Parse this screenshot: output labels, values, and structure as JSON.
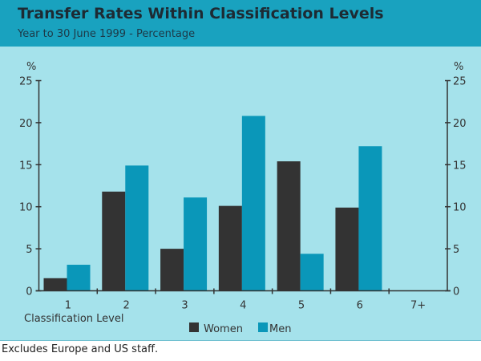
{
  "chart_data": {
    "type": "bar",
    "title": "Transfer Rates Within Classification Levels",
    "subtitle": "Year to 30 June 1999 - Percentage",
    "xlabel": "Classification Level",
    "ylabel_left": "%",
    "ylabel_right": "%",
    "ylim": [
      0,
      25
    ],
    "yticks": [
      0,
      5,
      10,
      15,
      20,
      25
    ],
    "categories": [
      "1",
      "2",
      "3",
      "4",
      "5",
      "6",
      "7+"
    ],
    "series": [
      {
        "name": "Women",
        "color": "#333333",
        "values": [
          1.5,
          11.8,
          5.0,
          10.1,
          15.4,
          9.9,
          null
        ]
      },
      {
        "name": "Men",
        "color": "#0a97b9",
        "values": [
          3.1,
          14.9,
          11.1,
          20.8,
          4.4,
          17.2,
          null
        ]
      }
    ],
    "legend": "bottom-center",
    "grid": false,
    "footnote": "Excludes Europe and US staff."
  }
}
